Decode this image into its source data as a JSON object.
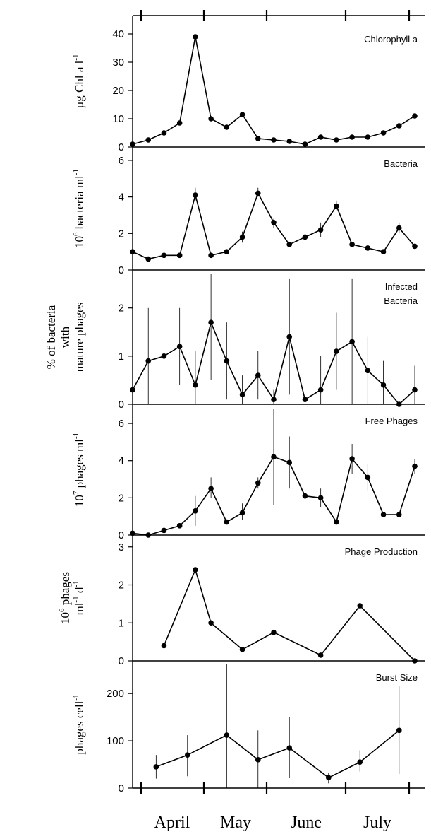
{
  "chart_data": {
    "type": "line",
    "x_axis": {
      "months": [
        "April",
        "May",
        "June",
        "July"
      ]
    },
    "panels": [
      {
        "id": "chlorophyll",
        "title": "Chlorophyll a",
        "ylabel_lines": [
          [
            {
              "t": "µg Chl a l"
            },
            {
              "t": "-1",
              "sup": true
            }
          ]
        ],
        "ylim": [
          0,
          45
        ],
        "ticks": [
          0,
          10,
          20,
          30,
          40
        ],
        "points": [
          {
            "x": 0,
            "y": 1
          },
          {
            "x": 1,
            "y": 2.5
          },
          {
            "x": 2,
            "y": 5
          },
          {
            "x": 3,
            "y": 8.5
          },
          {
            "x": 4,
            "y": 39
          },
          {
            "x": 5,
            "y": 10
          },
          {
            "x": 6,
            "y": 7
          },
          {
            "x": 7,
            "y": 11.5
          },
          {
            "x": 8,
            "y": 3
          },
          {
            "x": 9,
            "y": 2.5
          },
          {
            "x": 10,
            "y": 2
          },
          {
            "x": 11,
            "y": 1
          },
          {
            "x": 12,
            "y": 3.5
          },
          {
            "x": 13,
            "y": 2.5
          },
          {
            "x": 14,
            "y": 3.5
          },
          {
            "x": 15,
            "y": 3.5
          },
          {
            "x": 16,
            "y": 5
          },
          {
            "x": 17,
            "y": 7.5
          },
          {
            "x": 18,
            "y": 11
          }
        ]
      },
      {
        "id": "bacteria",
        "title": "Bacteria",
        "ylabel_lines": [
          [
            {
              "t": "10"
            },
            {
              "t": "6",
              "sup": true
            },
            {
              "t": " bacteria ml"
            },
            {
              "t": "-1",
              "sup": true
            }
          ]
        ],
        "ylim": [
          0,
          6.5
        ],
        "ticks": [
          0,
          2,
          4,
          6
        ],
        "points": [
          {
            "x": 0,
            "y": 1
          },
          {
            "x": 1,
            "y": 0.6
          },
          {
            "x": 2,
            "y": 0.8
          },
          {
            "x": 3,
            "y": 0.8
          },
          {
            "x": 4,
            "y": 4.1,
            "lo": 3.8,
            "hi": 4.5
          },
          {
            "x": 5,
            "y": 0.8
          },
          {
            "x": 6,
            "y": 1
          },
          {
            "x": 7,
            "y": 1.8,
            "lo": 1.5,
            "hi": 2.1
          },
          {
            "x": 8,
            "y": 4.2,
            "lo": 4,
            "hi": 4.5
          },
          {
            "x": 9,
            "y": 2.6,
            "lo": 2.3,
            "hi": 2.8
          },
          {
            "x": 10,
            "y": 1.4
          },
          {
            "x": 11,
            "y": 1.8
          },
          {
            "x": 12,
            "y": 2.2,
            "lo": 1.8,
            "hi": 2.6
          },
          {
            "x": 13,
            "y": 3.5,
            "lo": 3.3,
            "hi": 3.8
          },
          {
            "x": 14,
            "y": 1.4
          },
          {
            "x": 15,
            "y": 1.2
          },
          {
            "x": 16,
            "y": 1
          },
          {
            "x": 17,
            "y": 2.3,
            "lo": 2,
            "hi": 2.6
          },
          {
            "x": 18,
            "y": 1.3
          }
        ]
      },
      {
        "id": "infected",
        "title": "Infected",
        "title2": "Bacteria",
        "ylabel_lines": [
          [
            {
              "t": "% of bacteria"
            }
          ],
          [
            {
              "t": "with"
            }
          ],
          [
            {
              "t": "mature phages"
            }
          ]
        ],
        "ylim": [
          0,
          2.7
        ],
        "ticks": [
          0,
          1,
          2
        ],
        "points": [
          {
            "x": 0,
            "y": 0.3,
            "lo": 0,
            "hi": 0.9
          },
          {
            "x": 1,
            "y": 0.9,
            "lo": 0,
            "hi": 2.0
          },
          {
            "x": 2,
            "y": 1.0,
            "lo": 0,
            "hi": 2.3
          },
          {
            "x": 3,
            "y": 1.2,
            "lo": 0.4,
            "hi": 2.0
          },
          {
            "x": 4,
            "y": 0.4,
            "lo": 0,
            "hi": 1.1
          },
          {
            "x": 5,
            "y": 1.7,
            "lo": 0.5,
            "hi": 2.7
          },
          {
            "x": 6,
            "y": 0.9,
            "lo": 0.1,
            "hi": 1.7
          },
          {
            "x": 7,
            "y": 0.2,
            "lo": 0,
            "hi": 0.6
          },
          {
            "x": 8,
            "y": 0.6,
            "lo": 0.1,
            "hi": 1.1
          },
          {
            "x": 9,
            "y": 0.1,
            "lo": 0,
            "hi": 0.3
          },
          {
            "x": 10,
            "y": 1.4,
            "lo": 0.2,
            "hi": 2.6
          },
          {
            "x": 11,
            "y": 0.1,
            "lo": 0,
            "hi": 0.4
          },
          {
            "x": 12,
            "y": 0.3,
            "lo": 0,
            "hi": 1.0
          },
          {
            "x": 13,
            "y": 1.1,
            "lo": 0.3,
            "hi": 1.9
          },
          {
            "x": 14,
            "y": 1.3,
            "lo": 0,
            "hi": 2.6
          },
          {
            "x": 15,
            "y": 0.7,
            "lo": 0,
            "hi": 1.4
          },
          {
            "x": 16,
            "y": 0.4,
            "lo": 0,
            "hi": 0.9
          },
          {
            "x": 17,
            "y": 0,
            "lo": 0,
            "hi": 0
          },
          {
            "x": 18,
            "y": 0.3,
            "lo": 0,
            "hi": 0.8
          }
        ]
      },
      {
        "id": "freephages",
        "title": "Free Phages",
        "ylabel_lines": [
          [
            {
              "t": "10"
            },
            {
              "t": "7",
              "sup": true
            },
            {
              "t": " phages ml"
            },
            {
              "t": "-1",
              "sup": true
            }
          ]
        ],
        "ylim": [
          0,
          6.8
        ],
        "ticks": [
          0,
          2,
          4,
          6
        ],
        "points": [
          {
            "x": 0,
            "y": 0.1
          },
          {
            "x": 1,
            "y": 0
          },
          {
            "x": 2,
            "y": 0.25
          },
          {
            "x": 3,
            "y": 0.5
          },
          {
            "x": 4,
            "y": 1.3,
            "lo": 0.5,
            "hi": 2.1
          },
          {
            "x": 5,
            "y": 2.5,
            "lo": 2,
            "hi": 3.1
          },
          {
            "x": 6,
            "y": 0.7
          },
          {
            "x": 7,
            "y": 1.2,
            "lo": 0.8,
            "hi": 1.7
          },
          {
            "x": 8,
            "y": 2.8,
            "lo": 2.5,
            "hi": 3.1
          },
          {
            "x": 9,
            "y": 4.2,
            "lo": 1.6,
            "hi": 6.8
          },
          {
            "x": 10,
            "y": 3.9,
            "lo": 2.5,
            "hi": 5.3
          },
          {
            "x": 11,
            "y": 2.1,
            "lo": 1.7,
            "hi": 2.5
          },
          {
            "x": 12,
            "y": 2.0,
            "lo": 1.5,
            "hi": 2.5
          },
          {
            "x": 13,
            "y": 0.7
          },
          {
            "x": 14,
            "y": 4.1,
            "lo": 3.3,
            "hi": 4.9
          },
          {
            "x": 15,
            "y": 3.1,
            "lo": 2.4,
            "hi": 3.8
          },
          {
            "x": 16,
            "y": 1.1
          },
          {
            "x": 17,
            "y": 1.1
          },
          {
            "x": 18,
            "y": 3.7,
            "lo": 3.3,
            "hi": 4.1
          }
        ]
      },
      {
        "id": "production",
        "title": "Phage Production",
        "ylabel_lines": [
          [
            {
              "t": "10"
            },
            {
              "t": "6",
              "sup": true
            },
            {
              "t": " phages"
            }
          ],
          [
            {
              "t": "ml"
            },
            {
              "t": "-1",
              "sup": true
            },
            {
              "t": " d"
            },
            {
              "t": "-1",
              "sup": true
            }
          ]
        ],
        "ylim": [
          0,
          3.2
        ],
        "ticks": [
          0,
          1,
          2,
          3
        ],
        "points": [
          {
            "x": 2,
            "y": 0.4
          },
          {
            "x": 4,
            "y": 2.4
          },
          {
            "x": 5,
            "y": 1.0
          },
          {
            "x": 7,
            "y": 0.3
          },
          {
            "x": 9,
            "y": 0.75
          },
          {
            "x": 12,
            "y": 0.15
          },
          {
            "x": 14.5,
            "y": 1.45
          },
          {
            "x": 18,
            "y": 0
          }
        ]
      },
      {
        "id": "burst",
        "title": "Burst Size",
        "ylabel_lines": [
          [
            {
              "t": "phages cell"
            },
            {
              "t": "-1",
              "sup": true
            }
          ]
        ],
        "ylim": [
          0,
          260
        ],
        "ticks": [
          0,
          100,
          200
        ],
        "points": [
          {
            "x": 1.5,
            "y": 45,
            "lo": 20,
            "hi": 70
          },
          {
            "x": 3.5,
            "y": 70,
            "lo": 25,
            "hi": 112
          },
          {
            "x": 6,
            "y": 112,
            "lo": 0,
            "hi": 262
          },
          {
            "x": 8,
            "y": 60,
            "lo": 0,
            "hi": 122
          },
          {
            "x": 10,
            "y": 85,
            "lo": 22,
            "hi": 150
          },
          {
            "x": 12.5,
            "y": 22,
            "lo": 10,
            "hi": 32
          },
          {
            "x": 14.5,
            "y": 55,
            "lo": 35,
            "hi": 80
          },
          {
            "x": 17,
            "y": 122,
            "lo": 30,
            "hi": 215
          }
        ]
      }
    ]
  }
}
